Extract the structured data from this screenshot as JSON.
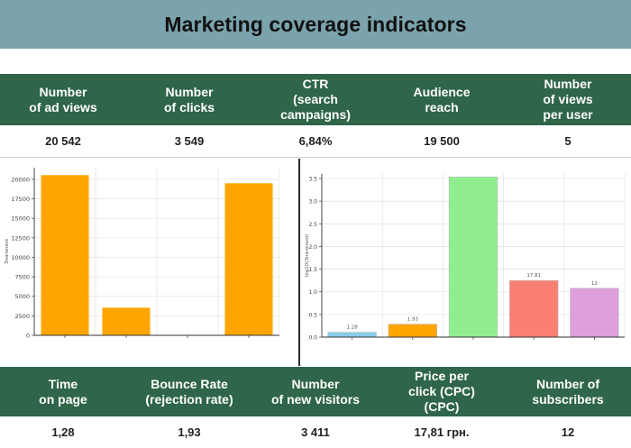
{
  "title": "Marketing coverage indicators",
  "top_headers": [
    "Number\nof ad views",
    "Number\nof clicks",
    "CTR\n(search\ncampaigns)",
    "Audience\nreach",
    "Number\nof views\nper user"
  ],
  "top_values": [
    "20 542",
    "3 549",
    "6,84%",
    "19 500",
    "5"
  ],
  "bottom_headers": [
    "Time\non page",
    "Bounce Rate\n(rejection rate)",
    "Number\nof new visitors",
    "Price per\nclick (CPC)\n(CPC)",
    "Number of\nsubscribers"
  ],
  "bottom_values": [
    "1,28",
    "1,93",
    "3 411",
    "17,81 грн.",
    "12"
  ],
  "chart_data": [
    {
      "type": "bar",
      "categories": [
        "",
        "",
        "",
        ""
      ],
      "values": [
        20542,
        3549,
        0,
        19500
      ],
      "ylim": [
        0,
        21500
      ],
      "yticks": [
        0,
        2500,
        5000,
        7500,
        10000,
        12500,
        15000,
        17500,
        20000
      ],
      "ylabel": "Значення",
      "colors": [
        "#ffa500",
        "#ffa500",
        "#ffa500",
        "#ffa500"
      ],
      "grid": true
    },
    {
      "type": "bar",
      "categories": [
        "",
        "",
        "",
        "",
        ""
      ],
      "values": [
        0.107,
        0.286,
        3.533,
        1.251,
        1.079
      ],
      "data_labels": [
        "1.28",
        "1.93",
        "",
        "17.81",
        "12"
      ],
      "ylim": [
        0,
        3.6
      ],
      "yticks": [
        0.0,
        0.5,
        1.0,
        1.5,
        2.0,
        2.5,
        3.0,
        3.5
      ],
      "ylabel": "log10(Значення)",
      "colors": [
        "#87ceeb",
        "#ffa500",
        "#90ee90",
        "#fa8072",
        "#dda0dd"
      ],
      "grid": true
    }
  ]
}
